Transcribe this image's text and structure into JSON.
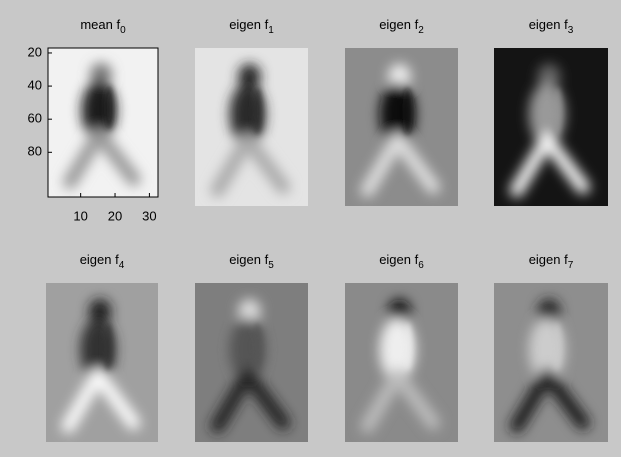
{
  "chart_data": [
    {
      "type": "image",
      "title": "mean f",
      "title_subscript": "0",
      "xlim": [
        0.5,
        32.5
      ],
      "xticks": [
        10,
        20,
        30
      ],
      "ylim": [
        17,
        107
      ],
      "yticks": [
        20,
        40,
        60,
        80
      ]
    },
    {
      "type": "image",
      "title": "eigen f",
      "title_subscript": "1"
    },
    {
      "type": "image",
      "title": "eigen f",
      "title_subscript": "2"
    },
    {
      "type": "image",
      "title": "eigen f",
      "title_subscript": "3"
    },
    {
      "type": "image",
      "title": "eigen f",
      "title_subscript": "4"
    },
    {
      "type": "image",
      "title": "eigen f",
      "title_subscript": "5"
    },
    {
      "type": "image",
      "title": "eigen f",
      "title_subscript": "6"
    },
    {
      "type": "image",
      "title": "eigen f",
      "title_subscript": "7"
    }
  ]
}
